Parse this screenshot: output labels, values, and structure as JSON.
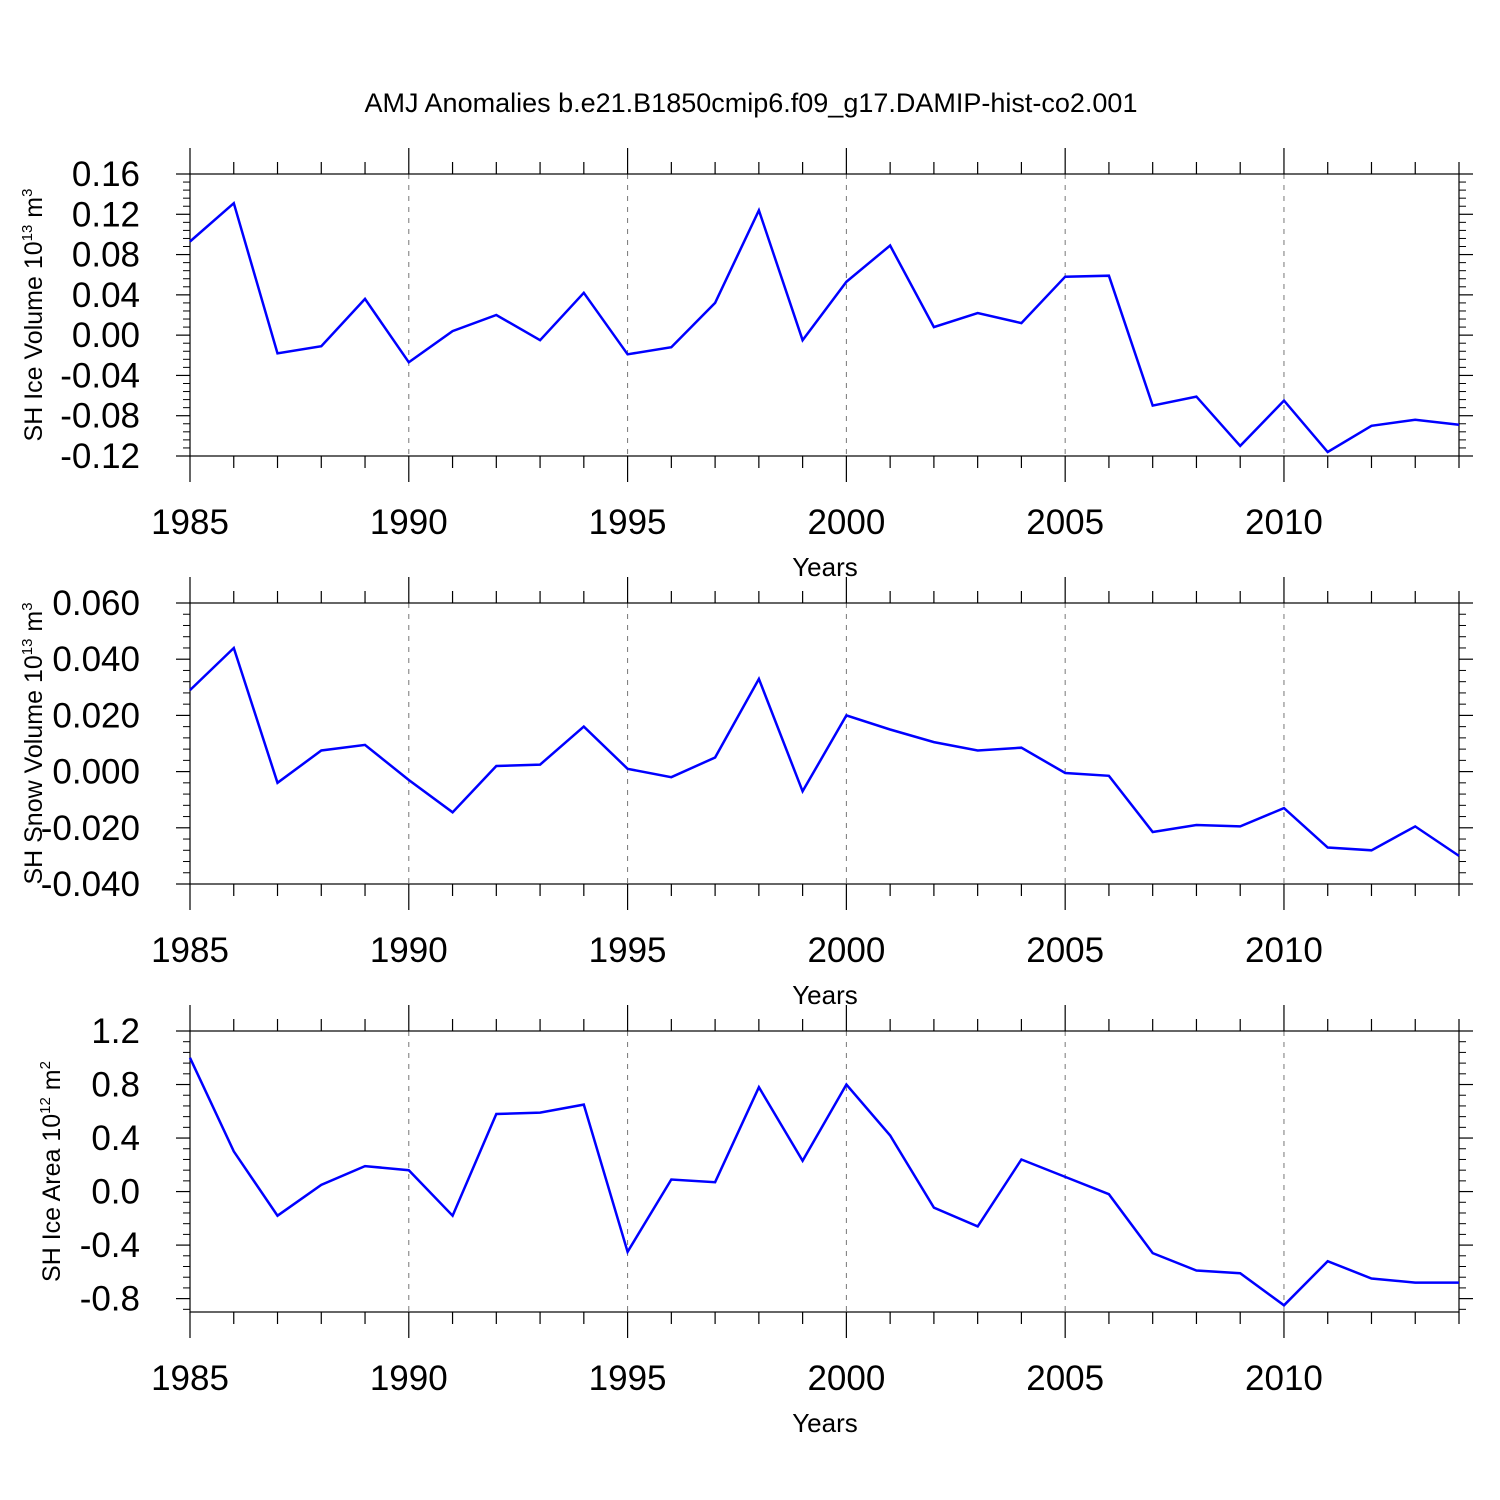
{
  "figure": {
    "title": "AMJ Anomalies b.e21.B1850cmip6.f09_g17.DAMIP-hist-co2.001"
  },
  "chart_data": [
    {
      "type": "line",
      "ylabel": {
        "text": "SH Ice Volume 10",
        "sup": "13",
        "unit": " m",
        "unit_sup": "3"
      },
      "xlabel": "Years",
      "xlim": [
        1985,
        2014
      ],
      "ylim": [
        -0.12,
        0.16
      ],
      "xticks": [
        1985,
        1990,
        1995,
        2000,
        2005,
        2010
      ],
      "xtick_labels": [
        "1985",
        "1990",
        "1995",
        "2000",
        "2005",
        "2010"
      ],
      "yticks": [
        -0.12,
        -0.08,
        -0.04,
        0.0,
        0.04,
        0.08,
        0.12,
        0.16
      ],
      "ytick_labels": [
        "-0.12",
        "-0.08",
        "-0.04",
        "0.00",
        "0.04",
        "0.08",
        "0.12",
        "0.16"
      ],
      "line_color": "#0000ff",
      "grid_x": true,
      "series": [
        {
          "x": [
            1985,
            1986,
            1987,
            1988,
            1989,
            1990,
            1991,
            1992,
            1993,
            1994,
            1995,
            1996,
            1997,
            1998,
            1999,
            2000,
            2001,
            2002,
            2003,
            2004,
            2005,
            2006,
            2007,
            2008,
            2009,
            2010,
            2011,
            2012,
            2013,
            2014
          ],
          "values": [
            0.093,
            0.131,
            -0.018,
            -0.011,
            0.036,
            -0.027,
            0.004,
            0.02,
            -0.005,
            0.042,
            -0.019,
            -0.012,
            0.032,
            0.124,
            -0.005,
            0.053,
            0.089,
            0.008,
            0.022,
            0.012,
            0.058,
            0.059,
            -0.07,
            -0.061,
            -0.11,
            -0.065,
            -0.116,
            -0.09,
            -0.084,
            -0.089
          ]
        }
      ]
    },
    {
      "type": "line",
      "ylabel": {
        "text": "SH Snow Volume 10",
        "sup": "13",
        "unit": " m",
        "unit_sup": "3"
      },
      "xlabel": "Years",
      "xlim": [
        1985,
        2014
      ],
      "ylim": [
        -0.04,
        0.06
      ],
      "xticks": [
        1985,
        1990,
        1995,
        2000,
        2005,
        2010
      ],
      "xtick_labels": [
        "1985",
        "1990",
        "1995",
        "2000",
        "2005",
        "2010"
      ],
      "yticks": [
        -0.04,
        -0.02,
        0.0,
        0.02,
        0.04,
        0.06
      ],
      "ytick_labels": [
        "-0.040",
        "-0.020",
        "0.000",
        "0.020",
        "0.040",
        "0.060"
      ],
      "line_color": "#0000ff",
      "grid_x": true,
      "series": [
        {
          "x": [
            1985,
            1986,
            1987,
            1988,
            1989,
            1990,
            1991,
            1992,
            1993,
            1994,
            1995,
            1996,
            1997,
            1998,
            1999,
            2000,
            2001,
            2002,
            2003,
            2004,
            2005,
            2006,
            2007,
            2008,
            2009,
            2010,
            2011,
            2012,
            2013,
            2014
          ],
          "values": [
            0.029,
            0.044,
            -0.004,
            0.0075,
            0.0095,
            -0.003,
            -0.0145,
            0.002,
            0.0025,
            0.016,
            0.001,
            -0.002,
            0.005,
            0.033,
            -0.007,
            0.02,
            0.015,
            0.0105,
            0.0075,
            0.0085,
            -0.0005,
            -0.0015,
            -0.0215,
            -0.019,
            -0.0195,
            -0.013,
            -0.027,
            -0.028,
            -0.0195,
            -0.03
          ]
        }
      ]
    },
    {
      "type": "line",
      "ylabel": {
        "text": "SH Ice Area 10",
        "sup": "12",
        "unit": " m",
        "unit_sup": "2"
      },
      "xlabel": "Years",
      "xlim": [
        1985,
        2014
      ],
      "ylim": [
        -0.9,
        1.2
      ],
      "xticks": [
        1985,
        1990,
        1995,
        2000,
        2005,
        2010
      ],
      "xtick_labels": [
        "1985",
        "1990",
        "1995",
        "2000",
        "2005",
        "2010"
      ],
      "yticks": [
        -0.8,
        -0.4,
        0.0,
        0.4,
        0.8,
        1.2
      ],
      "ytick_labels": [
        "-0.8",
        "-0.4",
        "0.0",
        "0.4",
        "0.8",
        "1.2"
      ],
      "line_color": "#0000ff",
      "grid_x": true,
      "series": [
        {
          "x": [
            1985,
            1986,
            1987,
            1988,
            1989,
            1990,
            1991,
            1992,
            1993,
            1994,
            1995,
            1996,
            1997,
            1998,
            1999,
            2000,
            2001,
            2002,
            2003,
            2004,
            2005,
            2006,
            2007,
            2008,
            2009,
            2010,
            2011,
            2012,
            2013,
            2014
          ],
          "values": [
            1.0,
            0.3,
            -0.18,
            0.05,
            0.19,
            0.16,
            -0.18,
            0.58,
            0.59,
            0.65,
            -0.45,
            0.09,
            0.07,
            0.78,
            0.23,
            0.8,
            0.42,
            -0.12,
            -0.26,
            0.24,
            0.11,
            -0.02,
            -0.46,
            -0.59,
            -0.61,
            -0.85,
            -0.52,
            -0.65,
            -0.68,
            -0.68
          ]
        }
      ]
    }
  ]
}
